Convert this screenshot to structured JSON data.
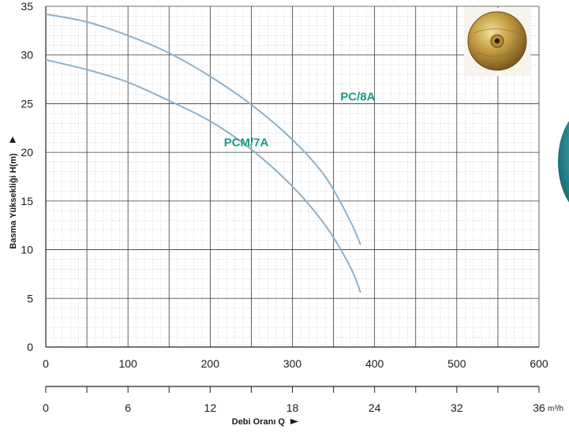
{
  "chart_data": {
    "type": "line",
    "ylabel": "Basma Yüksekliği H(m)",
    "xlabel": "Debi Oranı Q",
    "primary_x_ticks": [
      "0",
      "100",
      "200",
      "300",
      "400",
      "500",
      "600"
    ],
    "secondary_x_ticks": [
      "0",
      "6",
      "12",
      "18",
      "24",
      "32",
      "36"
    ],
    "secondary_x_unit": "m³/h",
    "y_ticks": [
      "0",
      "5",
      "10",
      "15",
      "20",
      "25",
      "30",
      "35"
    ],
    "xlim": [
      0,
      600
    ],
    "ylim": [
      0,
      35
    ],
    "grid": true,
    "series": [
      {
        "name": "PC/8A",
        "color": "#8fb0c8",
        "label_color": "#1a9a8a",
        "x": [
          0,
          50,
          100,
          150,
          200,
          250,
          300,
          340,
          370,
          383
        ],
        "y": [
          34.2,
          33.4,
          32.0,
          30.2,
          27.8,
          24.9,
          21.3,
          17.5,
          13.0,
          10.5
        ]
      },
      {
        "name": "PCM/7A",
        "color": "#8fb0c8",
        "label_color": "#1a9a8a",
        "x": [
          0,
          50,
          100,
          150,
          200,
          250,
          300,
          340,
          370,
          383
        ],
        "y": [
          29.5,
          28.5,
          27.2,
          25.3,
          23.2,
          20.3,
          16.5,
          12.5,
          8.3,
          5.6
        ]
      }
    ]
  }
}
